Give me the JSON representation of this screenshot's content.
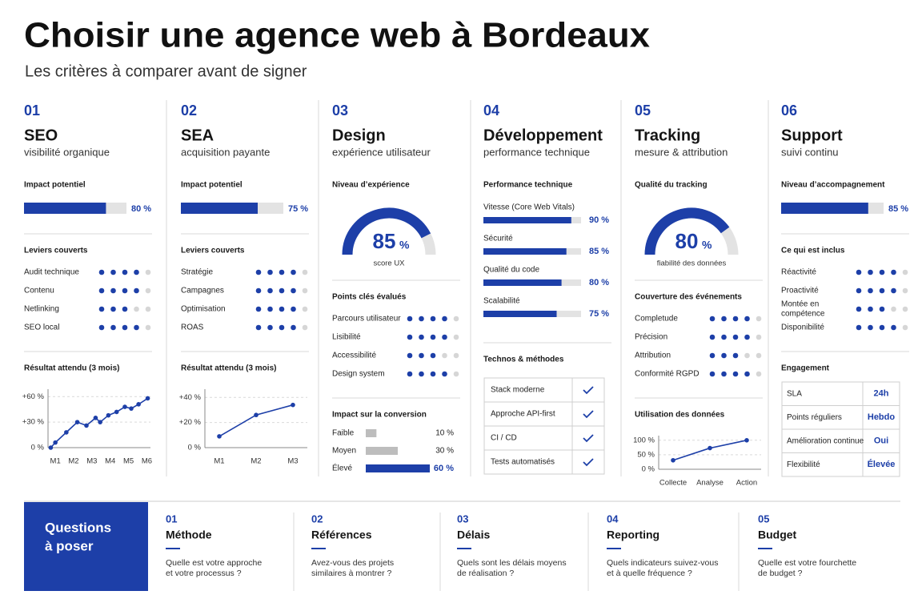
{
  "header": {
    "title": "Choisir une agence web à Bordeaux",
    "subtitle": "Les critères à comparer avant de signer"
  },
  "dot_scale": 5,
  "columns": [
    {
      "number": "01",
      "title": "SEO",
      "subtitle": "visibilité organique",
      "sections": [
        {
          "type": "bar",
          "label": "Impact potentiel",
          "value": 80,
          "value_label": "80 %",
          "xlim": [
            0,
            100
          ]
        },
        {
          "type": "dots",
          "label": "Leviers couverts",
          "items": [
            {
              "name": "Audit technique",
              "value": 4
            },
            {
              "name": "Contenu",
              "value": 4
            },
            {
              "name": "Netlinking",
              "value": 3
            },
            {
              "name": "SEO local",
              "value": 4
            }
          ]
        },
        {
          "type": "line",
          "label": "Résultat attendu (3 mois)",
          "x": [
            0.75,
            1,
            1.6,
            2.2,
            2.7,
            3.2,
            3.45,
            3.9,
            4.35,
            4.8,
            5.15,
            5.55,
            6.05
          ],
          "values": [
            0,
            6,
            18,
            30,
            26,
            35,
            30,
            38,
            42,
            48,
            46,
            51,
            58
          ],
          "xlim": [
            0.6,
            6.2
          ],
          "xticks": [
            {
              "value": 1,
              "label": "M1"
            },
            {
              "value": 2,
              "label": "M2"
            },
            {
              "value": 3,
              "label": "M3"
            },
            {
              "value": 4,
              "label": "M4"
            },
            {
              "value": 5,
              "label": "M5"
            },
            {
              "value": 6,
              "label": "M6"
            }
          ],
          "ylim": [
            0,
            65
          ],
          "yticks": [
            {
              "value": 0,
              "label": "0 %"
            },
            {
              "value": 30,
              "label": "+30 %"
            },
            {
              "value": 60,
              "label": "+60 %"
            }
          ]
        }
      ]
    },
    {
      "number": "02",
      "title": "SEA",
      "subtitle": "acquisition payante",
      "sections": [
        {
          "type": "bar",
          "label": "Impact potentiel",
          "value": 75,
          "value_label": "75 %",
          "xlim": [
            0,
            100
          ]
        },
        {
          "type": "dots",
          "label": "Leviers couverts",
          "items": [
            {
              "name": "Stratégie",
              "value": 4
            },
            {
              "name": "Campagnes",
              "value": 4
            },
            {
              "name": "Optimisation",
              "value": 4
            },
            {
              "name": "ROAS",
              "value": 4
            }
          ]
        },
        {
          "type": "line",
          "label": "Résultat attendu (3 mois)",
          "categories": [
            "M1",
            "M2",
            "M3"
          ],
          "values": [
            9,
            26,
            34
          ],
          "ylim": [
            0,
            44
          ],
          "yticks": [
            {
              "value": 0,
              "label": "0 %"
            },
            {
              "value": 20,
              "label": "+20 %"
            },
            {
              "value": 40,
              "label": "+40 %"
            }
          ]
        }
      ]
    },
    {
      "number": "03",
      "title": "Design",
      "subtitle": "expérience utilisateur",
      "sections": [
        {
          "type": "gauge",
          "label": "Niveau d’expérience",
          "value": 85,
          "unit": "%",
          "caption": "score UX",
          "lim": [
            0,
            100
          ]
        },
        {
          "type": "dots",
          "label": "Points clés évalués",
          "items": [
            {
              "name": "Parcours utilisateur",
              "value": 4
            },
            {
              "name": "Lisibilité",
              "value": 4
            },
            {
              "name": "Accessibilité",
              "value": 3
            },
            {
              "name": "Design system",
              "value": 4
            }
          ]
        },
        {
          "type": "compare",
          "label": "Impact sur la conversion",
          "xlim": [
            0,
            60
          ],
          "items": [
            {
              "name": "Faible",
              "value": 10,
              "value_label": "10 %"
            },
            {
              "name": "Moyen",
              "value": 30,
              "value_label": "30 %"
            },
            {
              "name": "Élevé",
              "value": 60,
              "value_label": "60 %",
              "highlight": true
            }
          ]
        }
      ]
    },
    {
      "number": "04",
      "title": "Développement",
      "subtitle": "performance technique",
      "sections": [
        {
          "type": "hbars",
          "label": "Performance technique",
          "xlim": [
            0,
            100
          ],
          "items": [
            {
              "name": "Vitesse (Core Web Vitals)",
              "value": 90,
              "value_label": "90 %"
            },
            {
              "name": "Sécurité",
              "value": 85,
              "value_label": "85 %"
            },
            {
              "name": "Qualité du code",
              "value": 80,
              "value_label": "80 %"
            },
            {
              "name": "Scalabilité",
              "value": 75,
              "value_label": "75 %"
            }
          ]
        },
        {
          "type": "checklist",
          "label": "Technos & méthodes",
          "items": [
            "Stack moderne",
            "Approche API-first",
            "CI / CD",
            "Tests automatisés"
          ]
        }
      ]
    },
    {
      "number": "05",
      "title": "Tracking",
      "subtitle": "mesure & attribution",
      "sections": [
        {
          "type": "gauge",
          "label": "Qualité du tracking",
          "value": 80,
          "unit": "%",
          "caption": "fiabilité des données",
          "lim": [
            0,
            100
          ]
        },
        {
          "type": "dots",
          "label": "Couverture des événements",
          "items": [
            {
              "name": "Completude",
              "value": 4
            },
            {
              "name": "Précision",
              "value": 4
            },
            {
              "name": "Attribution",
              "value": 3
            },
            {
              "name": "Conformité RGPD",
              "value": 4
            }
          ]
        },
        {
          "type": "line",
          "label": "Utilisation des données",
          "categories": [
            "Collecte",
            "Analyse",
            "Action"
          ],
          "values": [
            31,
            73,
            100
          ],
          "ylim": [
            0,
            105
          ],
          "yticks": [
            {
              "value": 0,
              "label": "0 %"
            },
            {
              "value": 50,
              "label": "50 %"
            },
            {
              "value": 100,
              "label": "100 %"
            }
          ]
        }
      ]
    },
    {
      "number": "06",
      "title": "Support",
      "subtitle": "suivi continu",
      "sections": [
        {
          "type": "bar",
          "label": "Niveau d’accompagnement",
          "value": 85,
          "value_label": "85 %",
          "xlim": [
            0,
            100
          ]
        },
        {
          "type": "dots",
          "label": "Ce qui est inclus",
          "items": [
            {
              "name": "Réactivité",
              "value": 4
            },
            {
              "name": "Proactivité",
              "value": 4
            },
            {
              "name": [
                "Montée en",
                "compétence"
              ],
              "value": 3
            },
            {
              "name": "Disponibilité",
              "value": 4
            }
          ]
        },
        {
          "type": "table",
          "label": "Engagement",
          "rows": [
            [
              "SLA",
              "24h"
            ],
            [
              "Points réguliers",
              "Hebdo"
            ],
            [
              "Amélioration continue",
              "Oui"
            ],
            [
              "Flexibilité",
              "Élevée"
            ]
          ]
        }
      ]
    }
  ],
  "footer": {
    "heading": [
      "Questions",
      "à poser"
    ],
    "items": [
      {
        "number": "01",
        "title": "Méthode",
        "text": [
          "Quelle est votre approche",
          "et votre processus ?"
        ]
      },
      {
        "number": "02",
        "title": "Références",
        "text": [
          "Avez-vous des projets",
          "similaires à montrer ?"
        ]
      },
      {
        "number": "03",
        "title": "Délais",
        "text": [
          "Quels sont les délais moyens",
          "de réalisation ?"
        ]
      },
      {
        "number": "04",
        "title": "Reporting",
        "text": [
          "Quels indicateurs suivez-vous",
          "et à quelle fréquence ?"
        ]
      },
      {
        "number": "05",
        "title": "Budget",
        "text": [
          "Quelle est votre fourchette",
          "de budget ?"
        ]
      }
    ]
  }
}
